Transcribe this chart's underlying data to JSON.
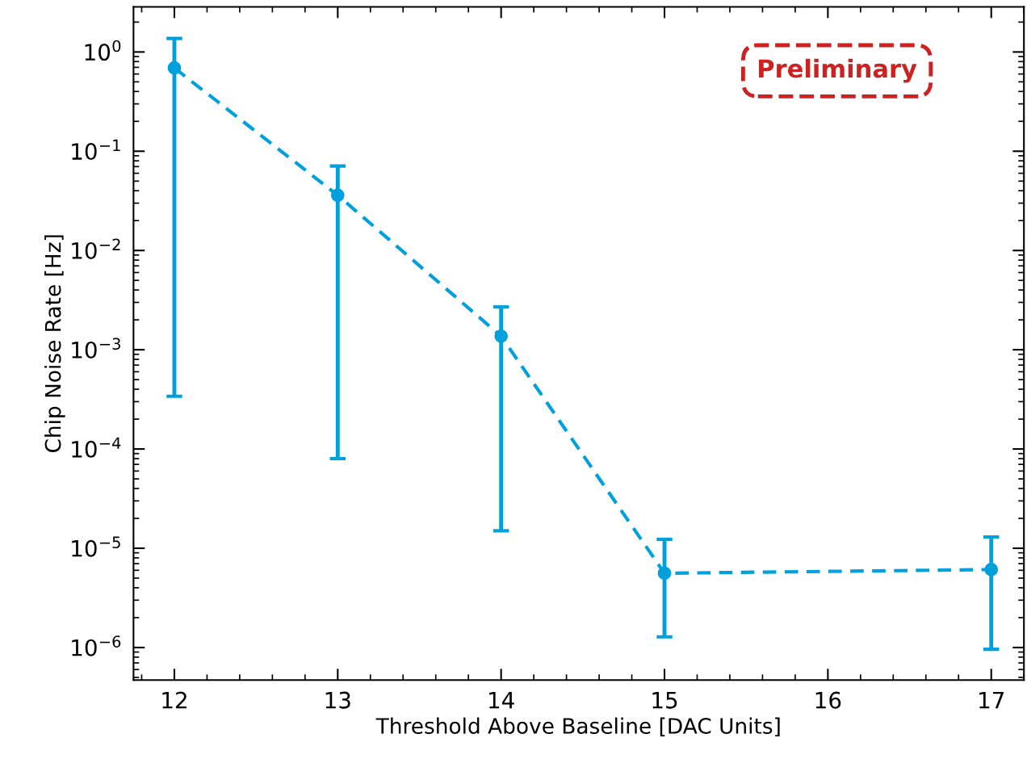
{
  "chart_data": {
    "type": "line",
    "xlabel": "Threshold Above Baseline [DAC Units]",
    "ylabel": "Chip Noise Rate [Hz]",
    "annotations": [
      "Preliminary"
    ],
    "x": [
      12,
      13,
      14,
      15,
      17
    ],
    "series": [
      {
        "color": "#00a0dd",
        "values": [
          0.69,
          0.036,
          0.00137,
          5.6e-06,
          6.1e-06
        ],
        "errors": [
          [
            0.00034,
            1.37
          ],
          [
            8e-05,
            0.071
          ],
          [
            1.5e-05,
            0.0027
          ],
          [
            1.28e-06,
            1.23e-05
          ],
          [
            9.6e-07,
            1.3e-05
          ]
        ]
      }
    ],
    "log": "y",
    "marker": "circle",
    "line_style": "dashed",
    "grid": false,
    "xlim": [
      11.75,
      17.2
    ],
    "xticks": [
      12,
      13,
      14,
      15,
      16,
      17
    ],
    "ylim": [
      4.7e-07,
      2.85
    ],
    "yticks": [
      {
        "value": 1,
        "label": "10$^{0}$"
      },
      {
        "value": 0.1,
        "label": "10$^{−1}$"
      },
      {
        "value": 0.01,
        "label": "10$^{−2}$"
      },
      {
        "value": 0.001,
        "label": "10$^{−3}$"
      },
      {
        "value": 0.0001,
        "label": "10$^{−4}$"
      },
      {
        "value": 1e-05,
        "label": "10$^{−5}$"
      },
      {
        "value": 1e-06,
        "label": "10$^{−6}$"
      }
    ]
  }
}
